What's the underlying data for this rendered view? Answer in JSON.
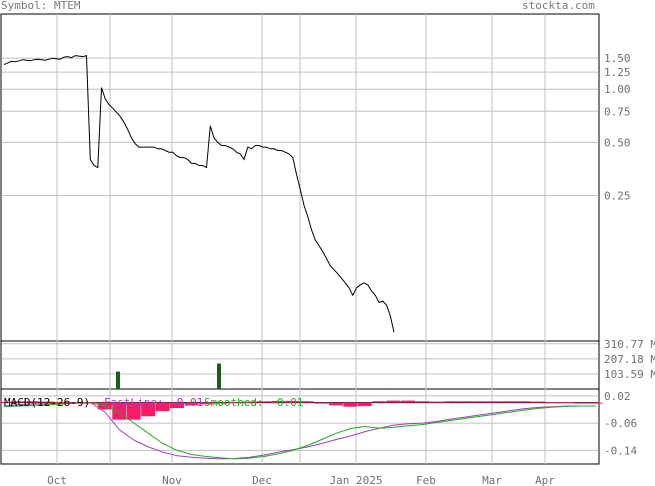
{
  "header": {
    "symbol_text": "Symbol: MTEM",
    "site_text": "stockta.com"
  },
  "colors": {
    "price_line": "#000000",
    "grid": "#c0c0c0",
    "volume_bar": "#1a5c1a",
    "histogram": "#ff1a66",
    "fast_line": "#a040c0",
    "smoothed_line": "#22aa22",
    "axis_text": "#707070"
  },
  "chart_data": [
    {
      "type": "line",
      "name": "price",
      "scale": "log",
      "ylim": [
        0.04,
        2.5
      ],
      "y_ticks": [
        1.5,
        1.25,
        1.0,
        0.75,
        0.5,
        0.25
      ],
      "y_tick_labels": [
        "1.50",
        "1.25",
        "1.00",
        "0.75",
        "0.50",
        "0.25"
      ],
      "x_tick_labels": [
        "Oct",
        "Nov",
        "Dec",
        "Jan 2025",
        "Feb",
        "Mar",
        "Apr"
      ],
      "grid": true,
      "series": [
        {
          "values": [
            1.38,
            1.41,
            1.44,
            1.43,
            1.45,
            1.47,
            1.46,
            1.45,
            1.47,
            1.48,
            1.47,
            1.46,
            1.48,
            1.5,
            1.49,
            1.48,
            1.52,
            1.53,
            1.51,
            1.55,
            1.54,
            1.53,
            1.55,
            0.4,
            0.37,
            0.36,
            1.02,
            0.88,
            0.82,
            0.78,
            0.74,
            0.7,
            0.65,
            0.59,
            0.53,
            0.49,
            0.47,
            0.47,
            0.47,
            0.47,
            0.47,
            0.46,
            0.46,
            0.45,
            0.44,
            0.44,
            0.42,
            0.41,
            0.41,
            0.4,
            0.38,
            0.38,
            0.37,
            0.37,
            0.36,
            0.62,
            0.53,
            0.5,
            0.48,
            0.48,
            0.47,
            0.46,
            0.44,
            0.43,
            0.4,
            0.47,
            0.46,
            0.48,
            0.48,
            0.47,
            0.47,
            0.46,
            0.46,
            0.45,
            0.45,
            0.44,
            0.43,
            0.41,
            0.33,
            0.27,
            0.22,
            0.19,
            0.16,
            0.14,
            0.13,
            0.12,
            0.11,
            0.1,
            0.095,
            0.09,
            0.085,
            0.08,
            0.075,
            0.068,
            0.075,
            0.078,
            0.08,
            0.078,
            0.072,
            0.068,
            0.062,
            0.063,
            0.06,
            0.052,
            0.042
          ]
        }
      ]
    },
    {
      "type": "bar",
      "name": "volume",
      "ylim": [
        0,
        330
      ],
      "y_tick_labels": [
        "310.77 M",
        "207.18 M",
        "103.59 M"
      ],
      "y_ticks": [
        310.77,
        207.18,
        103.59
      ],
      "bars": [
        {
          "x": 116,
          "value": 120
        },
        {
          "x": 217,
          "value": 175
        },
        {
          "x": 226,
          "value": 3
        },
        {
          "x": 238,
          "value": 2
        },
        {
          "x": 305,
          "value": 2
        },
        {
          "x": 386,
          "value": 5
        }
      ]
    },
    {
      "type": "line",
      "name": "MACD(12-26-9)",
      "title": "MACD(12-26-9)",
      "ylim": [
        -0.18,
        0.04
      ],
      "y_ticks": [
        0.02,
        -0.06,
        -0.14
      ],
      "y_tick_labels": [
        "0.02",
        "-0.06",
        "-0.14"
      ],
      "legend": [
        {
          "label": "FastLine:",
          "value": "-0.01"
        },
        {
          "label": "Smoothed:",
          "value": "-0.01"
        }
      ],
      "fast_line": [
        -0.01,
        -0.006,
        -0.004,
        -0.003,
        -0.002,
        -0.001,
        0.0,
        -0.028,
        -0.08,
        -0.11,
        -0.13,
        -0.145,
        -0.156,
        -0.16,
        -0.163,
        -0.165,
        -0.164,
        -0.16,
        -0.154,
        -0.145,
        -0.138,
        -0.13,
        -0.12,
        -0.108,
        -0.098,
        -0.085,
        -0.075,
        -0.066,
        -0.062,
        -0.06,
        -0.055,
        -0.048,
        -0.042,
        -0.036,
        -0.03,
        -0.024,
        -0.018,
        -0.014,
        -0.012,
        -0.01,
        -0.01,
        -0.01
      ],
      "smoothed_line": [
        -0.012,
        -0.01,
        -0.008,
        -0.006,
        -0.004,
        -0.002,
        -0.001,
        -0.008,
        -0.03,
        -0.06,
        -0.09,
        -0.12,
        -0.14,
        -0.152,
        -0.158,
        -0.162,
        -0.165,
        -0.163,
        -0.158,
        -0.15,
        -0.14,
        -0.126,
        -0.108,
        -0.09,
        -0.076,
        -0.07,
        -0.075,
        -0.072,
        -0.068,
        -0.064,
        -0.058,
        -0.052,
        -0.046,
        -0.04,
        -0.034,
        -0.028,
        -0.022,
        -0.017,
        -0.013,
        -0.011,
        -0.01,
        -0.01
      ],
      "histogram": [
        0.002,
        0.004,
        0.004,
        0.003,
        0.002,
        0.001,
        0.001,
        -0.02,
        -0.05,
        -0.05,
        -0.04,
        -0.025,
        -0.016,
        -0.008,
        -0.005,
        -0.003,
        0.001,
        0.003,
        0.004,
        0.005,
        0.005,
        0.004,
        -0.002,
        -0.008,
        -0.012,
        -0.01,
        0.004,
        0.006,
        0.006,
        0.004,
        0.003,
        0.004,
        0.004,
        0.004,
        0.004,
        0.004,
        0.004,
        0.003,
        0.001,
        0.001,
        0.0,
        0.0
      ]
    }
  ]
}
